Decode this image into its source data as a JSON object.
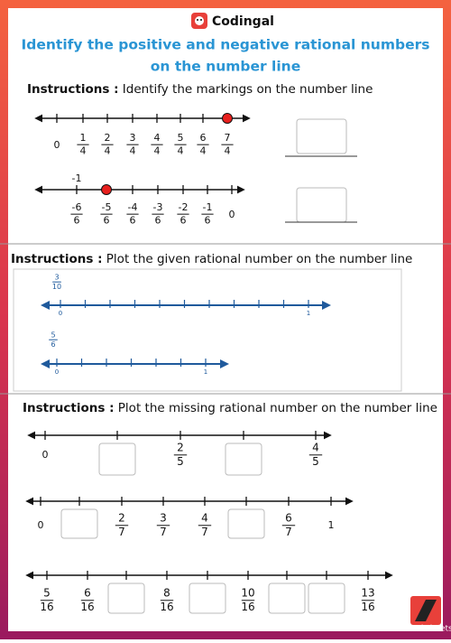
{
  "header": {
    "brand": "Codingal",
    "title": [
      "Identify the positive and negative rational numbers",
      "on the number line"
    ]
  },
  "section1": {
    "label": "Instructions :",
    "text": "Identify the markings on the number line",
    "lines": [
      {
        "ticks": [
          {
            "text": "0"
          },
          {
            "num": "1",
            "den": "4"
          },
          {
            "num": "2",
            "den": "4"
          },
          {
            "num": "3",
            "den": "4"
          },
          {
            "num": "4",
            "den": "4"
          },
          {
            "num": "5",
            "den": "4"
          },
          {
            "num": "6",
            "den": "4"
          },
          {
            "num": "7",
            "den": "4"
          }
        ]
      },
      {
        "above": "-1",
        "ticks": [
          {
            "num": "-6",
            "den": "6"
          },
          {
            "num": "-5",
            "den": "6"
          },
          {
            "num": "-4",
            "den": "6"
          },
          {
            "num": "-3",
            "den": "6"
          },
          {
            "num": "-2",
            "den": "6"
          },
          {
            "num": "-1",
            "den": "6"
          },
          {
            "text": "0"
          }
        ]
      }
    ]
  },
  "section2": {
    "label": "Instructions :",
    "text": "Plot the given rational number on the number line",
    "lines": [
      {
        "given": {
          "num": "3",
          "den": "10"
        },
        "start": "0",
        "end": "1"
      },
      {
        "given": {
          "num": "5",
          "den": "6"
        },
        "start": "0",
        "end": "1"
      }
    ]
  },
  "section3": {
    "label": "Instructions :",
    "text": "Plot the missing rational number on the number line",
    "lines": [
      {
        "ticks": [
          {
            "text": "0"
          },
          null,
          {
            "num": "2",
            "den": "5"
          },
          null,
          {
            "num": "4",
            "den": "5"
          }
        ]
      },
      {
        "ticks": [
          {
            "text": "0"
          },
          null,
          {
            "num": "2",
            "den": "7"
          },
          {
            "num": "3",
            "den": "7"
          },
          {
            "num": "4",
            "den": "7"
          },
          null,
          {
            "num": "6",
            "den": "7"
          },
          {
            "text": "1"
          }
        ]
      },
      {
        "ticks": [
          {
            "num": "5",
            "den": "16"
          },
          {
            "num": "6",
            "den": "16"
          },
          null,
          {
            "num": "8",
            "den": "16"
          },
          null,
          {
            "num": "10",
            "den": "16"
          },
          null,
          null,
          {
            "num": "13",
            "den": "16"
          }
        ]
      }
    ]
  },
  "footer": {
    "logo": "worksheets"
  }
}
